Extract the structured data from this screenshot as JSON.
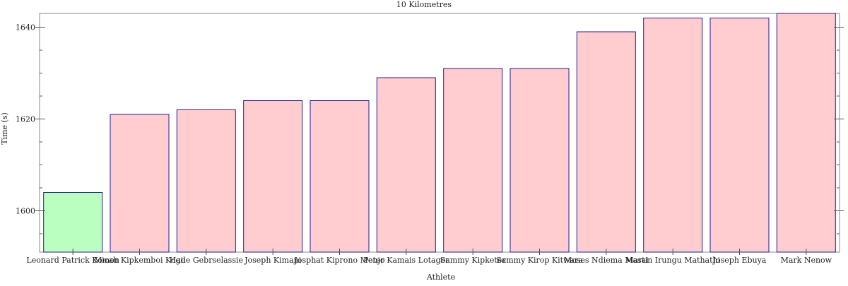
{
  "chart_data": {
    "type": "bar",
    "title": "10 Kilometres",
    "xlabel": "Athlete",
    "ylabel": "Time (s)",
    "ylim": [
      1591,
      1643
    ],
    "yticks": [
      1600,
      1620,
      1640
    ],
    "grid": false,
    "categories": [
      "Leonard Patrick Komon",
      "Micah Kipkemboi Kogo",
      "Haile Gebrselassie",
      "Joseph Kimani",
      "Josphat Kiprono Menjo",
      "Peter Kamais Lotagor",
      "Sammy Kipketer",
      "Sammy Kirop Kitwara",
      "Moses Ndiema Masai",
      "Martin Irungu Mathathi",
      "Joseph Ebuya",
      "Mark Nenow"
    ],
    "values": [
      1604,
      1621,
      1622,
      1624,
      1624,
      1629,
      1631,
      1631,
      1639,
      1642,
      1642,
      1643
    ],
    "highlight_index": 0,
    "colors": {
      "highlight_fill": "#bbffc0",
      "bar_fill": "#ffccd0",
      "bar_stroke": "#1f1f8f",
      "axis": "#555555"
    }
  }
}
